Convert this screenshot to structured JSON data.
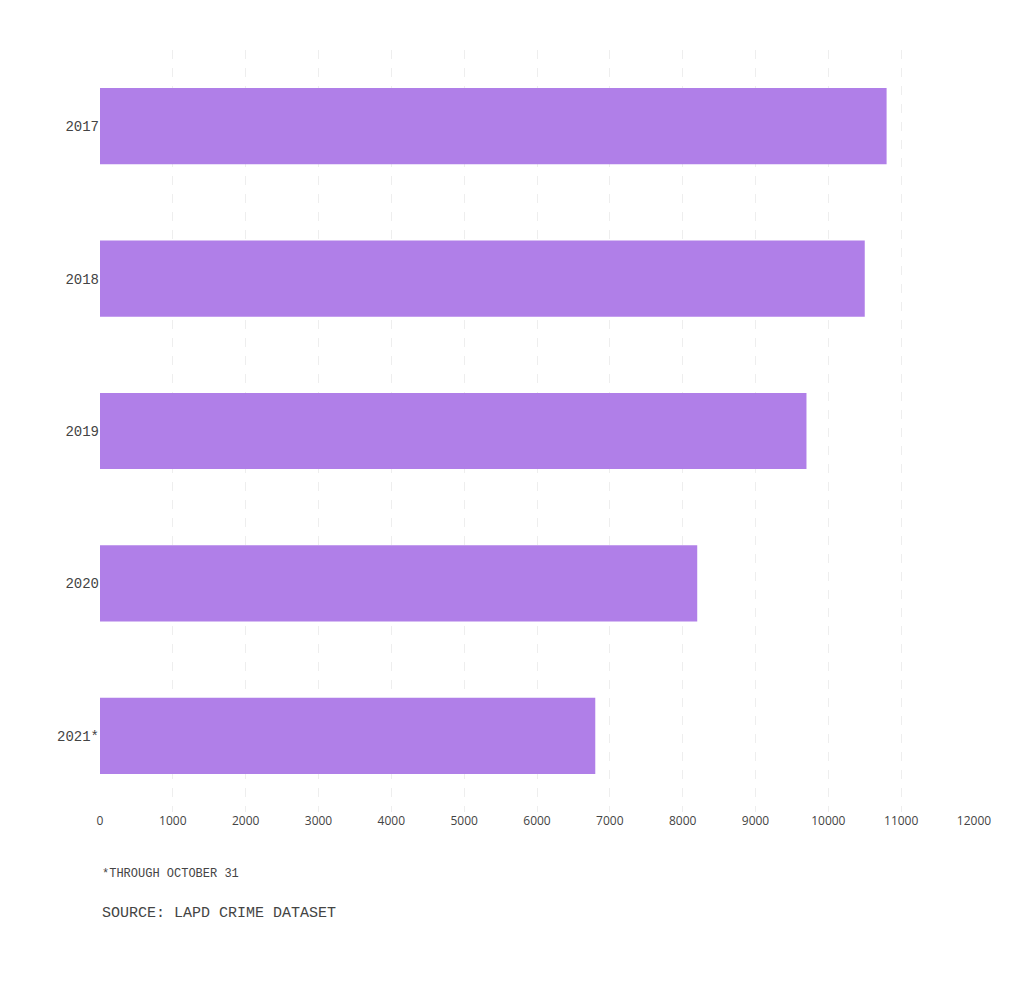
{
  "chart_data": {
    "type": "bar",
    "orientation": "horizontal",
    "categories": [
      "2017",
      "2018",
      "2019",
      "2020",
      "2021*"
    ],
    "values": [
      10800,
      10500,
      9700,
      8200,
      6800
    ],
    "color": "#b07fe8",
    "xlim": [
      0,
      12000
    ],
    "xticks": [
      0,
      1000,
      2000,
      3000,
      4000,
      5000,
      6000,
      7000,
      8000,
      9000,
      10000,
      11000,
      12000
    ],
    "grid": true,
    "annotations": [
      "*THROUGH OCTOBER 31",
      "SOURCE: LAPD CRIME DATASET"
    ]
  }
}
